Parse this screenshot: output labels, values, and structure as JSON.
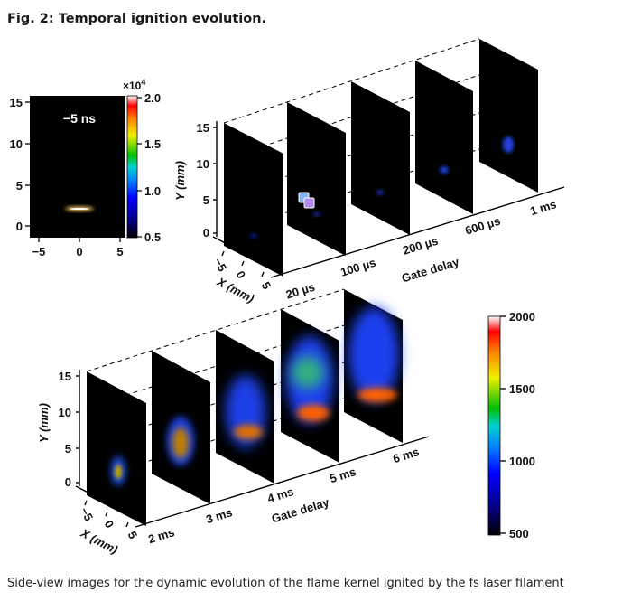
{
  "figure": {
    "title": "Fig. 2: Temporal ignition evolution.",
    "caption": "Side-view images for the dynamic evolution of the flame kernel ignited by the fs laser filament"
  },
  "inset": {
    "label": "−5 ns",
    "y_ticks": [
      "15",
      "10",
      "5",
      "0"
    ],
    "x_ticks": [
      "−5",
      "0",
      "5"
    ],
    "colorbar_multiplier": "×10",
    "colorbar_multiplier_exponent": "4",
    "colorbar_ticks": [
      "2.0",
      "1.5",
      "1.0",
      "0.5"
    ]
  },
  "top_panel": {
    "y_axis_label": "Y (mm)",
    "x_axis_label": "X (mm)",
    "gate_axis_label": "Gate delay",
    "y_ticks": [
      "15",
      "10",
      "5",
      "0"
    ],
    "x_ticks": [
      "−5",
      "0",
      "5"
    ],
    "delays": [
      "20 µs",
      "100 µs",
      "200 µs",
      "600 µs",
      "1 ms"
    ]
  },
  "bottom_panel": {
    "y_axis_label": "Y (mm)",
    "x_axis_label": "X (mm)",
    "gate_axis_label": "Gate delay",
    "y_ticks": [
      "15",
      "10",
      "5",
      "0"
    ],
    "x_ticks": [
      "−5",
      "0",
      "5"
    ],
    "delays": [
      "2 ms",
      "3 ms",
      "4 ms",
      "5 ms",
      "6 ms"
    ]
  },
  "colorbar": {
    "ticks": [
      "2000",
      "1500",
      "1000",
      "500"
    ]
  },
  "colors": {
    "background": "#ffffff",
    "frame": "#000000",
    "colormap": [
      "#000000",
      "#050080",
      "#0000ff",
      "#0080ff",
      "#00d0d0",
      "#00c000",
      "#f0f000",
      "#ff8000",
      "#ff0000",
      "#ffffff"
    ]
  }
}
